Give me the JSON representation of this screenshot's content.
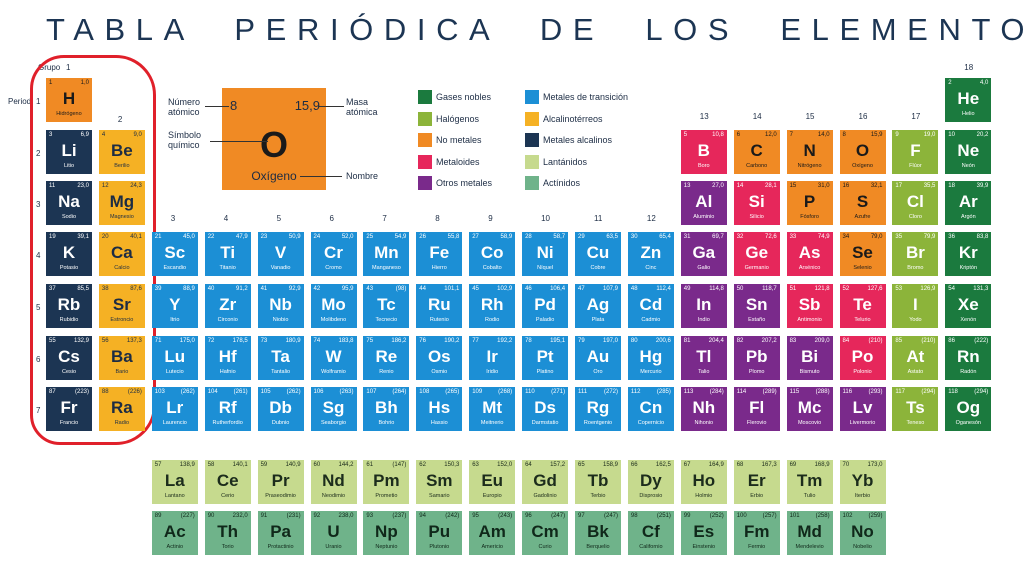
{
  "title": "TABLA PERIÓDICA DE LOS ELEMENTOS",
  "group_label": "Grupo",
  "period_label": "Period",
  "groups": [
    1,
    2,
    3,
    4,
    5,
    6,
    7,
    8,
    9,
    10,
    11,
    12,
    13,
    14,
    15,
    16,
    17,
    18
  ],
  "periods": [
    1,
    2,
    3,
    4,
    5,
    6,
    7
  ],
  "key": {
    "number": "8",
    "mass": "15,9",
    "symbol": "O",
    "name": "Oxígeno",
    "number_label": "Número atómico",
    "mass_label": "Masa atómica",
    "symbol_label": "Símbolo químico",
    "name_label": "Nombre"
  },
  "categories": [
    {
      "name": "Gases nobles",
      "color": "#1b7a3e",
      "text_color": "#ffffff"
    },
    {
      "name": "Halógenos",
      "color": "#8cb43a",
      "text_color": "#ffffff"
    },
    {
      "name": "No metales",
      "color": "#f08a24",
      "text_color": "#1a1a1a"
    },
    {
      "name": "Metaloides",
      "color": "#e6275b",
      "text_color": "#ffffff"
    },
    {
      "name": "Otros metales",
      "color": "#7a2a8b",
      "text_color": "#ffffff"
    },
    {
      "name": "Metales de transición",
      "color": "#1c8fd5",
      "text_color": "#ffffff"
    },
    {
      "name": "Alcalinotérreos",
      "color": "#f5b124",
      "text_color": "#1c2c44"
    },
    {
      "name": "Metales alcalinos",
      "color": "#1c3553",
      "text_color": "#ffffff"
    },
    {
      "name": "Lantánidos",
      "color": "#c6da8e",
      "text_color": "#1c2c1c"
    },
    {
      "name": "Actínidos",
      "color": "#6fb38a",
      "text_color": "#10281a"
    }
  ],
  "elements": [
    [
      1,
      "1,0",
      "H",
      "Hidrógeno",
      2
    ],
    [
      2,
      "4,0",
      "He",
      "Helio",
      0
    ],
    [
      3,
      "6,9",
      "Li",
      "Litio",
      7
    ],
    [
      4,
      "9,0",
      "Be",
      "Berilio",
      6
    ],
    [
      5,
      "10,8",
      "B",
      "Boro",
      3
    ],
    [
      6,
      "12,0",
      "C",
      "Carbono",
      2
    ],
    [
      7,
      "14,0",
      "N",
      "Nitrógeno",
      2
    ],
    [
      8,
      "15,9",
      "O",
      "Oxígeno",
      2
    ],
    [
      9,
      "19,0",
      "F",
      "Flúor",
      1
    ],
    [
      10,
      "20,2",
      "Ne",
      "Neón",
      0
    ],
    [
      11,
      "23,0",
      "Na",
      "Sodio",
      7
    ],
    [
      12,
      "24,3",
      "Mg",
      "Magnesio",
      6
    ],
    [
      13,
      "27,0",
      "Al",
      "Aluminio",
      4
    ],
    [
      14,
      "28,1",
      "Si",
      "Silicio",
      3
    ],
    [
      15,
      "31,0",
      "P",
      "Fósforo",
      2
    ],
    [
      16,
      "32,1",
      "S",
      "Azufre",
      2
    ],
    [
      17,
      "35,5",
      "Cl",
      "Cloro",
      1
    ],
    [
      18,
      "39,9",
      "Ar",
      "Argón",
      0
    ],
    [
      19,
      "39,1",
      "K",
      "Potasio",
      7
    ],
    [
      20,
      "40,1",
      "Ca",
      "Calcio",
      6
    ],
    [
      21,
      "45,0",
      "Sc",
      "Escandio",
      5
    ],
    [
      22,
      "47,9",
      "Ti",
      "Titanio",
      5
    ],
    [
      23,
      "50,9",
      "V",
      "Vanadio",
      5
    ],
    [
      24,
      "52,0",
      "Cr",
      "Cromo",
      5
    ],
    [
      25,
      "54,9",
      "Mn",
      "Manganeso",
      5
    ],
    [
      26,
      "55,8",
      "Fe",
      "Hierro",
      5
    ],
    [
      27,
      "58,9",
      "Co",
      "Cobalto",
      5
    ],
    [
      28,
      "58,7",
      "Ni",
      "Níquel",
      5
    ],
    [
      29,
      "63,5",
      "Cu",
      "Cobre",
      5
    ],
    [
      30,
      "65,4",
      "Zn",
      "Cinc",
      5
    ],
    [
      31,
      "69,7",
      "Ga",
      "Galio",
      4
    ],
    [
      32,
      "72,6",
      "Ge",
      "Germanio",
      3
    ],
    [
      33,
      "74,9",
      "As",
      "Arsénico",
      3
    ],
    [
      34,
      "79,0",
      "Se",
      "Selenio",
      2
    ],
    [
      35,
      "79,9",
      "Br",
      "Bromo",
      1
    ],
    [
      36,
      "83,8",
      "Kr",
      "Kriptón",
      0
    ],
    [
      37,
      "85,5",
      "Rb",
      "Rubidio",
      7
    ],
    [
      38,
      "87,6",
      "Sr",
      "Estroncio",
      6
    ],
    [
      39,
      "88,9",
      "Y",
      "Itrio",
      5
    ],
    [
      40,
      "91,2",
      "Zr",
      "Circonio",
      5
    ],
    [
      41,
      "92,9",
      "Nb",
      "Niobio",
      5
    ],
    [
      42,
      "95,9",
      "Mo",
      "Molibdeno",
      5
    ],
    [
      43,
      "(98)",
      "Tc",
      "Tecnecio",
      5
    ],
    [
      44,
      "101,1",
      "Ru",
      "Rutenio",
      5
    ],
    [
      45,
      "102,9",
      "Rh",
      "Rodio",
      5
    ],
    [
      46,
      "106,4",
      "Pd",
      "Paladio",
      5
    ],
    [
      47,
      "107,9",
      "Ag",
      "Plata",
      5
    ],
    [
      48,
      "112,4",
      "Cd",
      "Cadmio",
      5
    ],
    [
      49,
      "114,8",
      "In",
      "Indio",
      4
    ],
    [
      50,
      "118,7",
      "Sn",
      "Estaño",
      4
    ],
    [
      51,
      "121,8",
      "Sb",
      "Antimonio",
      3
    ],
    [
      52,
      "127,6",
      "Te",
      "Telurio",
      3
    ],
    [
      53,
      "126,9",
      "I",
      "Yodo",
      1
    ],
    [
      54,
      "131,3",
      "Xe",
      "Xenón",
      0
    ],
    [
      55,
      "132,9",
      "Cs",
      "Cesio",
      7
    ],
    [
      56,
      "137,3",
      "Ba",
      "Bario",
      6
    ],
    [
      57,
      "138,9",
      "La",
      "Lantano",
      8
    ],
    [
      58,
      "140,1",
      "Ce",
      "Cerio",
      8
    ],
    [
      59,
      "140,9",
      "Pr",
      "Praseodimio",
      8
    ],
    [
      60,
      "144,2",
      "Nd",
      "Neodimio",
      8
    ],
    [
      61,
      "(147)",
      "Pm",
      "Prometio",
      8
    ],
    [
      62,
      "150,3",
      "Sm",
      "Samario",
      8
    ],
    [
      63,
      "152,0",
      "Eu",
      "Europio",
      8
    ],
    [
      64,
      "157,2",
      "Gd",
      "Gadolinio",
      8
    ],
    [
      65,
      "158,9",
      "Tb",
      "Terbio",
      8
    ],
    [
      66,
      "162,5",
      "Dy",
      "Disprosio",
      8
    ],
    [
      67,
      "164,9",
      "Ho",
      "Holmio",
      8
    ],
    [
      68,
      "167,3",
      "Er",
      "Erbio",
      8
    ],
    [
      69,
      "168,9",
      "Tm",
      "Tulio",
      8
    ],
    [
      70,
      "173,0",
      "Yb",
      "Iterbio",
      8
    ],
    [
      71,
      "175,0",
      "Lu",
      "Lutecio",
      5
    ],
    [
      72,
      "178,5",
      "Hf",
      "Hafnio",
      5
    ],
    [
      73,
      "180,9",
      "Ta",
      "Tantalio",
      5
    ],
    [
      74,
      "183,8",
      "W",
      "Wolframio",
      5
    ],
    [
      75,
      "186,2",
      "Re",
      "Renio",
      5
    ],
    [
      76,
      "190,2",
      "Os",
      "Osmio",
      5
    ],
    [
      77,
      "192,2",
      "Ir",
      "Iridio",
      5
    ],
    [
      78,
      "195,1",
      "Pt",
      "Platino",
      5
    ],
    [
      79,
      "197,0",
      "Au",
      "Oro",
      5
    ],
    [
      80,
      "200,6",
      "Hg",
      "Mercurio",
      5
    ],
    [
      81,
      "204,4",
      "Tl",
      "Talio",
      4
    ],
    [
      82,
      "207,2",
      "Pb",
      "Plomo",
      4
    ],
    [
      83,
      "209,0",
      "Bi",
      "Bismuto",
      4
    ],
    [
      84,
      "(210)",
      "Po",
      "Polonio",
      3
    ],
    [
      85,
      "(210)",
      "At",
      "Astato",
      1
    ],
    [
      86,
      "(222)",
      "Rn",
      "Radón",
      0
    ],
    [
      87,
      "(223)",
      "Fr",
      "Francio",
      7
    ],
    [
      88,
      "(226)",
      "Ra",
      "Radio",
      6
    ],
    [
      89,
      "(227)",
      "Ac",
      "Actinio",
      9
    ],
    [
      90,
      "232,0",
      "Th",
      "Torio",
      9
    ],
    [
      91,
      "(231)",
      "Pa",
      "Protactinio",
      9
    ],
    [
      92,
      "238,0",
      "U",
      "Uranio",
      9
    ],
    [
      93,
      "(237)",
      "Np",
      "Neptunio",
      9
    ],
    [
      94,
      "(242)",
      "Pu",
      "Plutonio",
      9
    ],
    [
      95,
      "(243)",
      "Am",
      "Americio",
      9
    ],
    [
      96,
      "(247)",
      "Cm",
      "Curio",
      9
    ],
    [
      97,
      "(247)",
      "Bk",
      "Berquelio",
      9
    ],
    [
      98,
      "(251)",
      "Cf",
      "Californio",
      9
    ],
    [
      99,
      "(252)",
      "Es",
      "Einstenio",
      9
    ],
    [
      100,
      "(257)",
      "Fm",
      "Fermio",
      9
    ],
    [
      101,
      "(258)",
      "Md",
      "Mendelevio",
      9
    ],
    [
      102,
      "(259)",
      "No",
      "Nobelio",
      9
    ],
    [
      103,
      "(262)",
      "Lr",
      "Laurencio",
      5
    ],
    [
      104,
      "(261)",
      "Rf",
      "Rutherfordio",
      5
    ],
    [
      105,
      "(262)",
      "Db",
      "Dubnio",
      5
    ],
    [
      106,
      "(263)",
      "Sg",
      "Seaborgio",
      5
    ],
    [
      107,
      "(264)",
      "Bh",
      "Bohrio",
      5
    ],
    [
      108,
      "(265)",
      "Hs",
      "Hassio",
      5
    ],
    [
      109,
      "(268)",
      "Mt",
      "Meitnerio",
      5
    ],
    [
      110,
      "(271)",
      "Ds",
      "Darmstatio",
      5
    ],
    [
      111,
      "(272)",
      "Rg",
      "Roentgenio",
      5
    ],
    [
      112,
      "(285)",
      "Cn",
      "Copernicio",
      5
    ],
    [
      113,
      "(284)",
      "Nh",
      "Nihonio",
      4
    ],
    [
      114,
      "(289)",
      "Fl",
      "Flerovio",
      4
    ],
    [
      115,
      "(288)",
      "Mc",
      "Moscovio",
      4
    ],
    [
      116,
      "(293)",
      "Lv",
      "Livermorio",
      4
    ],
    [
      117,
      "(294)",
      "Ts",
      "Teneso",
      1
    ],
    [
      118,
      "(294)",
      "Og",
      "Oganesón",
      0
    ]
  ]
}
